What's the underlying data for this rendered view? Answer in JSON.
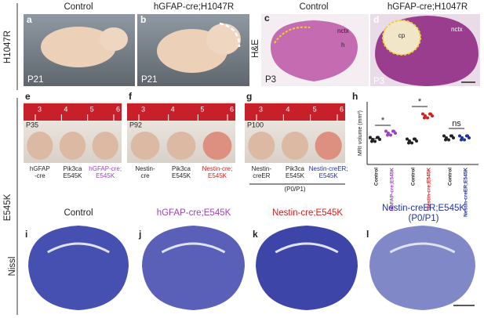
{
  "row_labels": [
    "H1047R",
    "E545K"
  ],
  "panel_a": {
    "letter": "a",
    "header": "Control",
    "age": "P21"
  },
  "panel_b": {
    "letter": "b",
    "header": "hGFAP-cre;H1047R",
    "age": "P21"
  },
  "panel_c": {
    "letter": "c",
    "header": "Control",
    "stain": "H&E",
    "age": "P3",
    "labels": [
      "nctx",
      "h"
    ]
  },
  "panel_d": {
    "letter": "d",
    "header": "hGFAP-cre;H1047R",
    "age": "P3",
    "labels": [
      "cp",
      "nctx"
    ]
  },
  "panel_e": {
    "letter": "e",
    "age": "P35",
    "ruler": [
      "3",
      "4",
      "5",
      "6"
    ],
    "captions": [
      [
        "hGFAP",
        "-cre"
      ],
      [
        "Pik3ca",
        "E545K"
      ],
      [
        "hGFAP-cre;",
        "E545K"
      ]
    ]
  },
  "panel_f": {
    "letter": "f",
    "age": "P92",
    "ruler": [
      "3",
      "4",
      "5",
      "6"
    ],
    "captions": [
      [
        "Nestin-",
        "cre"
      ],
      [
        "Pik3ca",
        "E545K"
      ],
      [
        "Nestin-cre;",
        "E545K"
      ]
    ]
  },
  "panel_g": {
    "letter": "g",
    "age": "P100",
    "ruler": [
      "3",
      "4",
      "5",
      "6"
    ],
    "captions": [
      [
        "Nestin-",
        "creER"
      ],
      [
        "Pik3ca",
        "E545K"
      ],
      [
        "Nestin-creER;",
        "E545K"
      ]
    ],
    "note": "(P0/P1)"
  },
  "panel_h": {
    "letter": "h",
    "y_label": "MRI volume (mm³)",
    "groups": [
      "Control",
      "hGFAP-cre;E545K",
      "Control",
      "Nestin-cre;E545K",
      "Control",
      "Nestin-creER;E545K"
    ],
    "significance": [
      "*",
      "*",
      "ns"
    ]
  },
  "panel_i": {
    "letter": "i",
    "header": "Control",
    "stain": "Nissl"
  },
  "panel_j": {
    "letter": "j",
    "header": "hGFAP-cre;E545K"
  },
  "panel_k": {
    "letter": "k",
    "header": "Nestin-cre;E545K"
  },
  "panel_l": {
    "letter": "l",
    "header": [
      "Nestin-creER;E545K",
      "(P0/P1)"
    ]
  }
}
